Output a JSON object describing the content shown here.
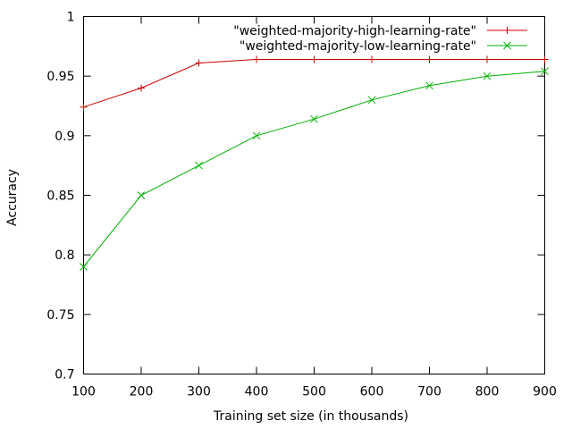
{
  "chart_data": {
    "type": "line",
    "title": "",
    "xlabel": "Training set size (in thousands)",
    "ylabel": "Accuracy",
    "x": [
      100,
      200,
      300,
      400,
      500,
      600,
      700,
      800,
      900
    ],
    "xlim": [
      100,
      900
    ],
    "ylim": [
      0.7,
      1
    ],
    "xticks": [
      "100",
      "200",
      "300",
      "400",
      "500",
      "600",
      "700",
      "800",
      "900"
    ],
    "yticks": [
      "0.7",
      "0.75",
      "0.8",
      "0.85",
      "0.9",
      "0.95",
      "1"
    ],
    "grid": false,
    "legend_position": "top-right",
    "series": [
      {
        "name": "\"weighted-majority-high-learning-rate\"",
        "color": "#cc0000",
        "marker": "plus",
        "values": [
          0.924,
          0.94,
          0.961,
          0.964,
          0.964,
          0.964,
          0.964,
          0.964,
          0.964
        ]
      },
      {
        "name": "\"weighted-majority-low-learning-rate\"",
        "color": "#00b000",
        "marker": "cross",
        "values": [
          0.79,
          0.85,
          0.875,
          0.9,
          0.914,
          0.93,
          0.942,
          0.95,
          0.954
        ]
      }
    ]
  }
}
